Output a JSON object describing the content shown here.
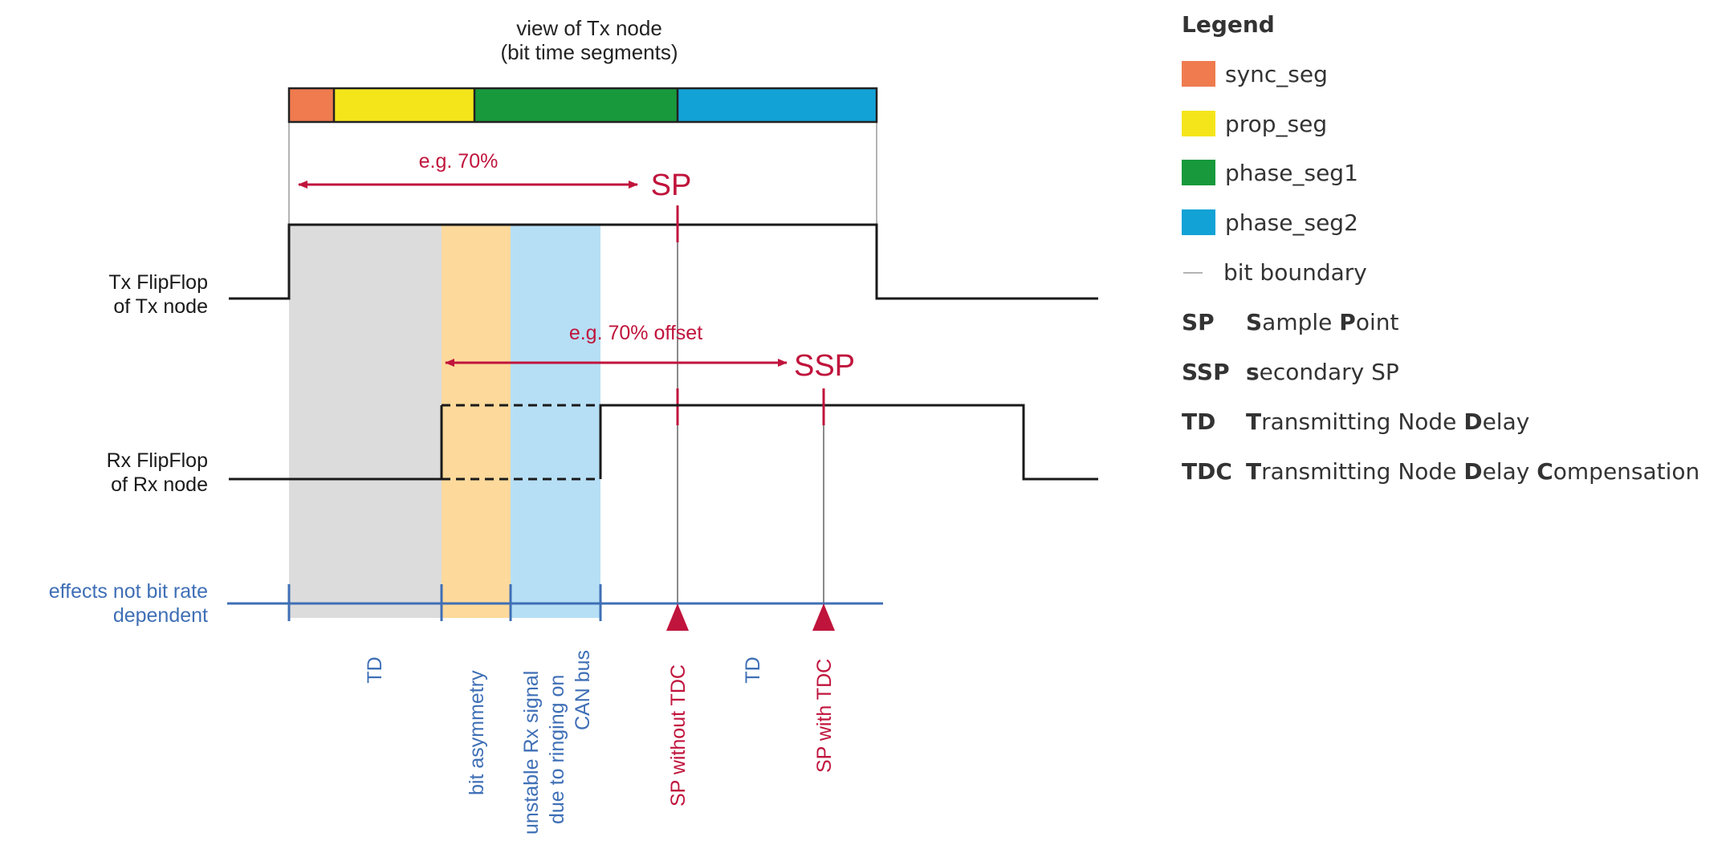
{
  "diagram": {
    "title_line1": "view of Tx node",
    "title_line2": "(bit time segments)",
    "sp_arrow_label": "e.g. 70%",
    "sp_label": "SP",
    "ssp_arrow_label": "e.g. 70% offset",
    "ssp_label": "SSP",
    "tx_label_line1": "Tx FlipFlop",
    "tx_label_line2": "of Tx node",
    "rx_label_line1": "Rx FlipFlop",
    "rx_label_line2": "of Rx node",
    "effects_line1": "effects not bit rate",
    "effects_line2": "dependent",
    "bottom_labels": {
      "td1": "TD",
      "asym": "bit asymmetry",
      "unstable_1": "unstable Rx signal",
      "unstable_2": "due to ringing on",
      "unstable_3": "CAN bus",
      "sp_without": "SP without TDC",
      "td2": "TD",
      "sp_with": "SP with TDC"
    }
  },
  "legend": {
    "title": "Legend",
    "segments": [
      {
        "label": "sync_seg",
        "color": "#ef7b4f"
      },
      {
        "label": "prop_seg",
        "color": "#f4e51b"
      },
      {
        "label": "phase_seg1",
        "color": "#18993c"
      },
      {
        "label": "phase_seg2",
        "color": "#12a2d6"
      }
    ],
    "bit_boundary": "bit boundary",
    "abbreviations": [
      {
        "abbr": "SP",
        "parts": [
          [
            "S",
            true
          ],
          [
            "ample ",
            false
          ],
          [
            "P",
            true
          ],
          [
            "oint",
            false
          ]
        ]
      },
      {
        "abbr": "SSP",
        "parts": [
          [
            "s",
            true
          ],
          [
            "econdary SP",
            false
          ]
        ]
      },
      {
        "abbr": "TD",
        "parts": [
          [
            "T",
            true
          ],
          [
            "ransmitting Node ",
            false
          ],
          [
            "D",
            true
          ],
          [
            "elay",
            false
          ]
        ]
      },
      {
        "abbr": "TDC",
        "parts": [
          [
            "T",
            true
          ],
          [
            "ransmitting Node ",
            false
          ],
          [
            "D",
            true
          ],
          [
            "elay ",
            false
          ],
          [
            "C",
            true
          ],
          [
            "ompensation",
            false
          ]
        ]
      }
    ]
  },
  "colors": {
    "accent_red": "#c0143c",
    "effects_blue": "#3f6fb6",
    "td_gray": "#dcdcdc",
    "asym_orange": "#fdd99b",
    "unstable_blue": "#b6dff5",
    "bit_boundary_gray": "#b4b4b4"
  }
}
